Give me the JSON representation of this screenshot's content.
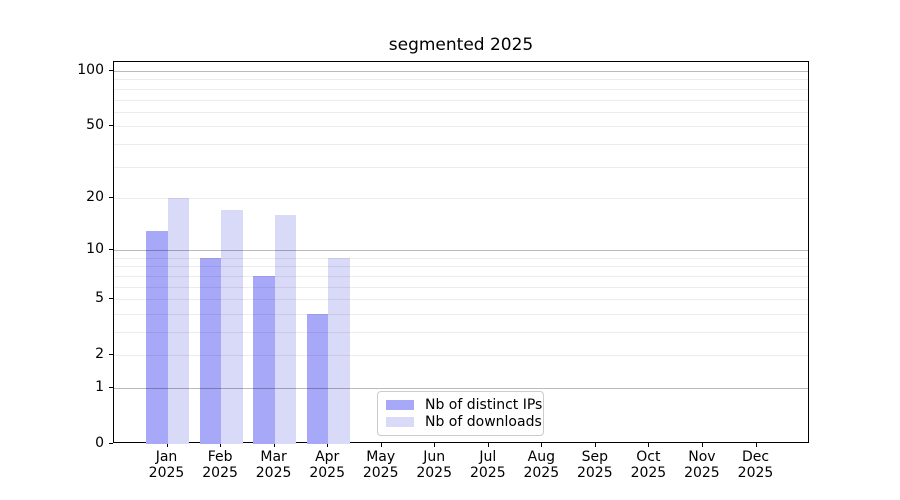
{
  "title": "segmented 2025",
  "chart_data": {
    "type": "bar",
    "title": "segmented 2025",
    "categories": [
      "Jan",
      "Feb",
      "Mar",
      "Apr",
      "May",
      "Jun",
      "Jul",
      "Aug",
      "Sep",
      "Oct",
      "Nov",
      "Dec"
    ],
    "year_label": "2025",
    "series": [
      {
        "name": "Nb of distinct IPs",
        "color": "#a8a8f8",
        "values": [
          13,
          9,
          7,
          4,
          0,
          0,
          0,
          0,
          0,
          0,
          0,
          0
        ]
      },
      {
        "name": "Nb of downloads",
        "color": "#d9d9f8",
        "values": [
          20,
          17,
          16,
          9,
          0,
          0,
          0,
          0,
          0,
          0,
          0,
          0
        ]
      }
    ],
    "yscale": "log10(1+v)",
    "ylim": [
      0,
      113
    ],
    "y_ticks": [
      0,
      1,
      2,
      5,
      10,
      20,
      50,
      100
    ],
    "grid_minor_values": [
      2,
      3,
      4,
      5,
      6,
      7,
      8,
      9,
      20,
      30,
      40,
      50,
      60,
      70,
      80,
      90
    ],
    "grid_major_values": [
      1,
      10,
      100
    ],
    "legend_position": "lower center",
    "legend_border_color": "#cccccc",
    "grid": "on"
  }
}
